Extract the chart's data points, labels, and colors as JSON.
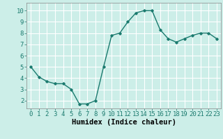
{
  "x": [
    0,
    1,
    2,
    3,
    4,
    5,
    6,
    7,
    8,
    9,
    10,
    11,
    12,
    13,
    14,
    15,
    16,
    17,
    18,
    19,
    20,
    21,
    22,
    23
  ],
  "y": [
    5.0,
    4.1,
    3.7,
    3.5,
    3.5,
    3.0,
    1.7,
    1.7,
    2.0,
    5.0,
    7.8,
    8.0,
    9.0,
    9.8,
    10.0,
    10.0,
    8.3,
    7.5,
    7.2,
    7.5,
    7.8,
    8.0,
    8.0,
    7.5
  ],
  "xlabel": "Humidex (Indice chaleur)",
  "ylim": [
    1.3,
    10.7
  ],
  "xlim": [
    -0.5,
    23.5
  ],
  "yticks": [
    2,
    3,
    4,
    5,
    6,
    7,
    8,
    9,
    10
  ],
  "xticks": [
    0,
    1,
    2,
    3,
    4,
    5,
    6,
    7,
    8,
    9,
    10,
    11,
    12,
    13,
    14,
    15,
    16,
    17,
    18,
    19,
    20,
    21,
    22,
    23
  ],
  "line_color": "#1a7a6e",
  "marker": "D",
  "marker_size": 1.8,
  "background_color": "#cceee8",
  "grid_color": "#ffffff",
  "xlabel_fontsize": 7.5,
  "tick_fontsize": 6.5,
  "line_width": 1.0
}
